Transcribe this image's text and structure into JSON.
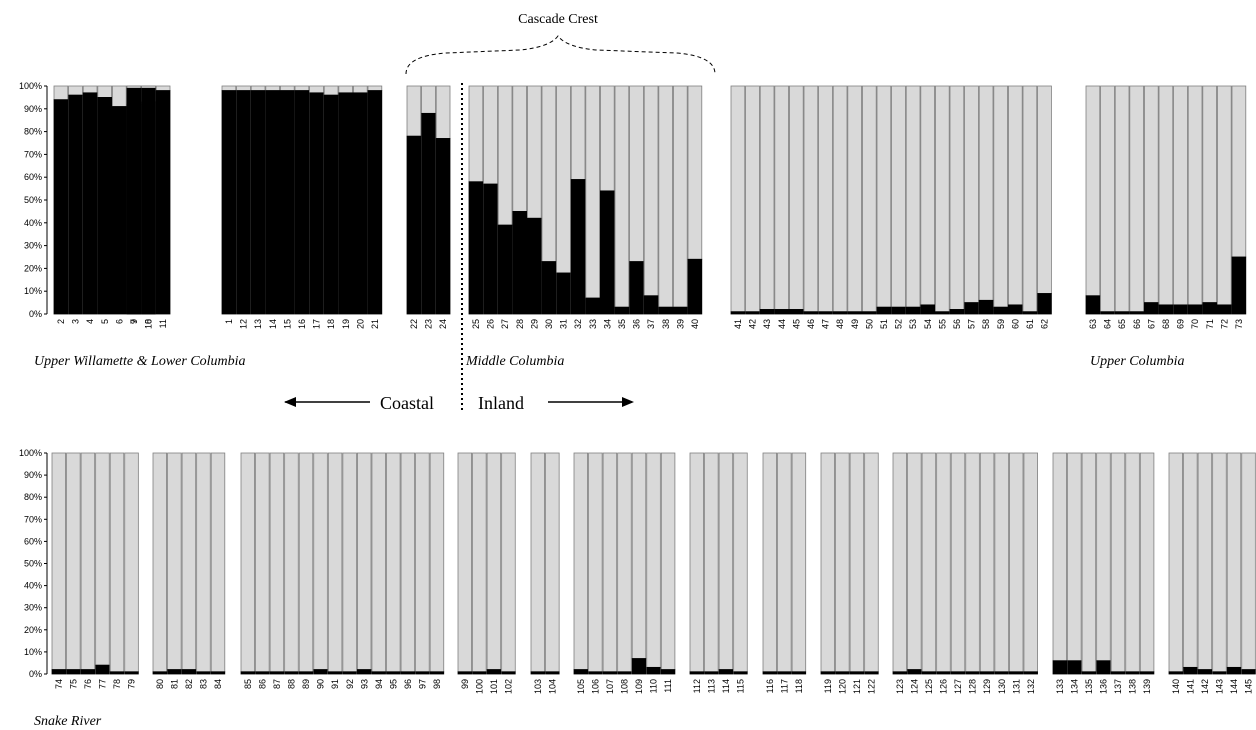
{
  "chart_data": [
    {
      "type": "bar",
      "stacked": true,
      "ylim": [
        0,
        100
      ],
      "yticks": [
        "0%",
        "10%",
        "20%",
        "30%",
        "40%",
        "50%",
        "60%",
        "70%",
        "80%",
        "90%",
        "100%"
      ],
      "series_colors": {
        "coastal_cluster": "#000000",
        "inland_cluster": "#d9d9d9"
      },
      "groups": [
        {
          "categories": [
            "2",
            "3",
            "4",
            "5",
            "6",
            "7",
            "8"
          ],
          "values": [
            94,
            96,
            97,
            95,
            91,
            92,
            93
          ]
        },
        {
          "categories": [
            "9",
            "10",
            "11"
          ],
          "values": [
            99,
            99,
            98
          ]
        },
        {
          "categories": [
            "1",
            "12",
            "13",
            "14",
            "15",
            "16",
            "17",
            "18",
            "19",
            "20",
            "21"
          ],
          "values": [
            98,
            98,
            98,
            98,
            98,
            98,
            97,
            96,
            97,
            97,
            98
          ]
        },
        {
          "categories": [
            "22",
            "23",
            "24"
          ],
          "values": [
            78,
            88,
            77
          ]
        },
        {
          "categories": [
            "25",
            "26",
            "27",
            "28",
            "29",
            "30",
            "31",
            "32",
            "33",
            "34",
            "35",
            "36",
            "37",
            "38",
            "39",
            "40"
          ],
          "values": [
            58,
            57,
            39,
            45,
            42,
            23,
            18,
            59,
            7,
            54,
            3,
            23,
            8,
            3,
            3,
            24
          ]
        },
        {
          "categories": [
            "41",
            "42",
            "43",
            "44",
            "45",
            "46",
            "47",
            "48",
            "49",
            "50",
            "51",
            "52",
            "53",
            "54",
            "55",
            "56",
            "57",
            "58",
            "59",
            "60",
            "61",
            "62"
          ],
          "values": [
            1,
            1,
            2,
            2,
            2,
            1,
            1,
            1,
            1,
            1,
            3,
            3,
            3,
            4,
            1,
            2,
            5,
            6,
            3,
            4,
            1,
            9
          ]
        },
        {
          "categories": [
            "63",
            "64",
            "65",
            "66",
            "67",
            "68",
            "69",
            "70",
            "71",
            "72",
            "73"
          ],
          "values": [
            8,
            1,
            1,
            1,
            5,
            4,
            4,
            4,
            5,
            4,
            25
          ]
        }
      ],
      "region_labels": [
        "Upper Willamette & Lower Columbia",
        "Middle Columbia",
        "Upper Columbia"
      ],
      "annotation": {
        "crest": "Cascade Crest",
        "coastal": "Coastal",
        "inland": "Inland"
      }
    },
    {
      "type": "bar",
      "stacked": true,
      "ylim": [
        0,
        100
      ],
      "yticks": [
        "0%",
        "10%",
        "20%",
        "30%",
        "40%",
        "50%",
        "60%",
        "70%",
        "80%",
        "90%",
        "100%"
      ],
      "series_colors": {
        "coastal_cluster": "#000000",
        "inland_cluster": "#d9d9d9"
      },
      "groups": [
        {
          "categories": [
            "74",
            "75",
            "76",
            "77",
            "78",
            "79"
          ],
          "values": [
            2,
            2,
            2,
            4,
            1,
            1
          ]
        },
        {
          "categories": [
            "80",
            "81",
            "82",
            "83",
            "84"
          ],
          "values": [
            1,
            2,
            2,
            1,
            1
          ]
        },
        {
          "categories": [
            "85",
            "86",
            "87",
            "88",
            "89",
            "90",
            "91",
            "92",
            "93",
            "94",
            "95",
            "96",
            "97",
            "98"
          ],
          "values": [
            1,
            1,
            1,
            1,
            1,
            2,
            1,
            1,
            2,
            1,
            1,
            1,
            1,
            1
          ]
        },
        {
          "categories": [
            "99",
            "100",
            "101",
            "102"
          ],
          "values": [
            1,
            1,
            2,
            1
          ]
        },
        {
          "categories": [
            "103",
            "104"
          ],
          "values": [
            1,
            1
          ]
        },
        {
          "categories": [
            "105",
            "106",
            "107",
            "108",
            "109",
            "110",
            "111"
          ],
          "values": [
            2,
            1,
            1,
            1,
            7,
            3,
            2
          ]
        },
        {
          "categories": [
            "112",
            "113",
            "114",
            "115"
          ],
          "values": [
            1,
            1,
            2,
            1
          ]
        },
        {
          "categories": [
            "116",
            "117",
            "118"
          ],
          "values": [
            1,
            1,
            1
          ]
        },
        {
          "categories": [
            "119",
            "120",
            "121",
            "122"
          ],
          "values": [
            1,
            1,
            1,
            1
          ]
        },
        {
          "categories": [
            "123",
            "124",
            "125",
            "126",
            "127",
            "128",
            "129",
            "130",
            "131",
            "132"
          ],
          "values": [
            1,
            2,
            1,
            1,
            1,
            1,
            1,
            1,
            1,
            1
          ]
        },
        {
          "categories": [
            "133",
            "134",
            "135",
            "136",
            "137",
            "138",
            "139"
          ],
          "values": [
            6,
            6,
            1,
            6,
            1,
            1,
            1
          ]
        },
        {
          "categories": [
            "140",
            "141",
            "142",
            "143",
            "144",
            "145"
          ],
          "values": [
            1,
            3,
            2,
            1,
            3,
            2
          ]
        }
      ],
      "region_labels": [
        "Snake River"
      ]
    }
  ]
}
